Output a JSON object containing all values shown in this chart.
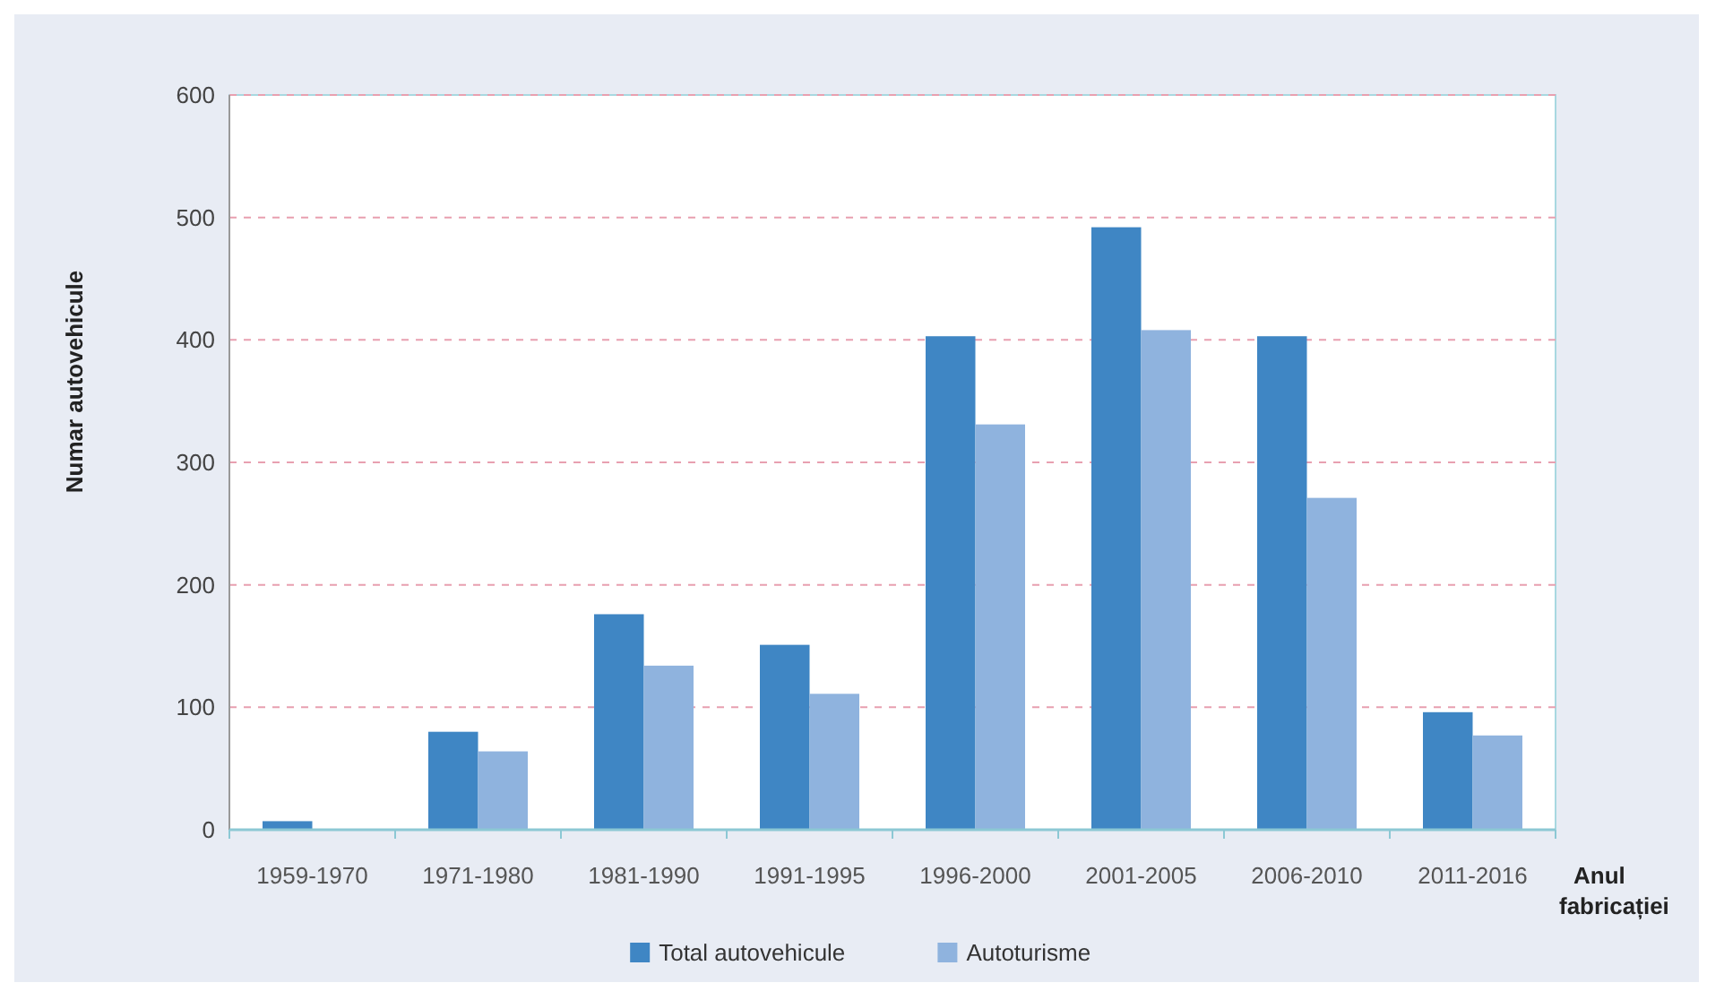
{
  "chart_data": {
    "type": "bar",
    "ylabel": "Numar autovehicule",
    "xlabel": "Anul fabricației",
    "categories": [
      "1959-1970",
      "1971-1980",
      "1981-1990",
      "1991-1995",
      "1996-2000",
      "2001-2005",
      "2006-2010",
      "2011-2016"
    ],
    "series": [
      {
        "name": "Total autovehicule",
        "color": "#3f86c4",
        "values": [
          7,
          80,
          176,
          151,
          403,
          492,
          403,
          96
        ]
      },
      {
        "name": "Autoturisme",
        "color": "#8fb3de",
        "values": [
          null,
          64,
          134,
          111,
          331,
          408,
          271,
          77
        ]
      }
    ],
    "ylim": [
      0,
      600
    ],
    "yticks": [
      0,
      100,
      200,
      300,
      400,
      500,
      600
    ],
    "grid": "y",
    "line_style": "dashed",
    "legend": "bottom"
  }
}
